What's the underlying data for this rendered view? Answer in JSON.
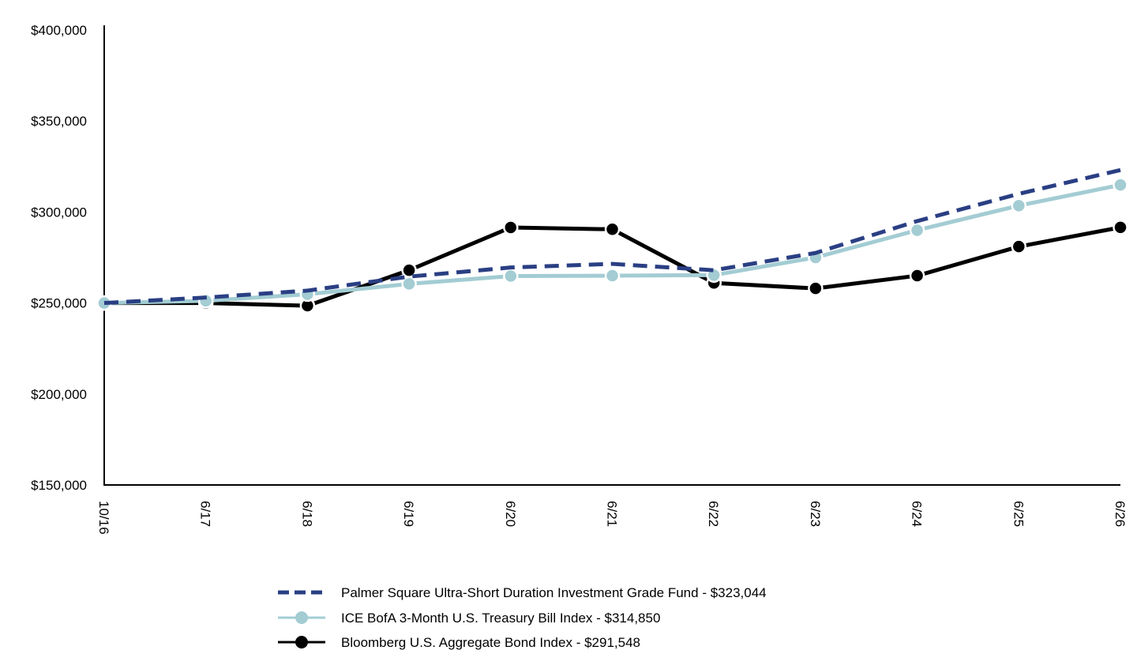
{
  "chart_data": {
    "type": "line",
    "title": "",
    "xlabel": "",
    "ylabel": "",
    "x": [
      "10/16",
      "6/17",
      "6/18",
      "6/19",
      "6/20",
      "6/21",
      "6/22",
      "6/23",
      "6/24",
      "6/25",
      "6/26"
    ],
    "ylim": [
      150000,
      400000
    ],
    "yticks": [
      150000,
      200000,
      250000,
      300000,
      350000,
      400000
    ],
    "ytick_labels": [
      "$150,000",
      "$200,000",
      "$250,000",
      "$300,000",
      "$350,000",
      "$400,000"
    ],
    "grid": false,
    "legend_position": "bottom",
    "series": [
      {
        "name": "Palmer Square Ultra-Short Duration Investment Grade Fund - $323,044",
        "color": "#2a3f83",
        "style": "dashed",
        "marker": "none",
        "values": [
          250000,
          253000,
          256800,
          264500,
          269500,
          271500,
          268000,
          277500,
          295000,
          310000,
          323044
        ]
      },
      {
        "name": "ICE BofA 3-Month U.S. Treasury Bill Index - $314,850",
        "color": "#a3ccd3",
        "style": "solid",
        "marker": "circle",
        "values": [
          250000,
          251200,
          254800,
          260500,
          264800,
          265000,
          265300,
          275000,
          290000,
          303500,
          314850
        ]
      },
      {
        "name": "Bloomberg U.S. Aggregate Bond Index - $291,548",
        "color": "#000000",
        "style": "solid",
        "marker": "circle",
        "values": [
          250000,
          250000,
          248500,
          268000,
          291500,
          290500,
          261000,
          258000,
          265000,
          281000,
          291548
        ]
      }
    ]
  }
}
